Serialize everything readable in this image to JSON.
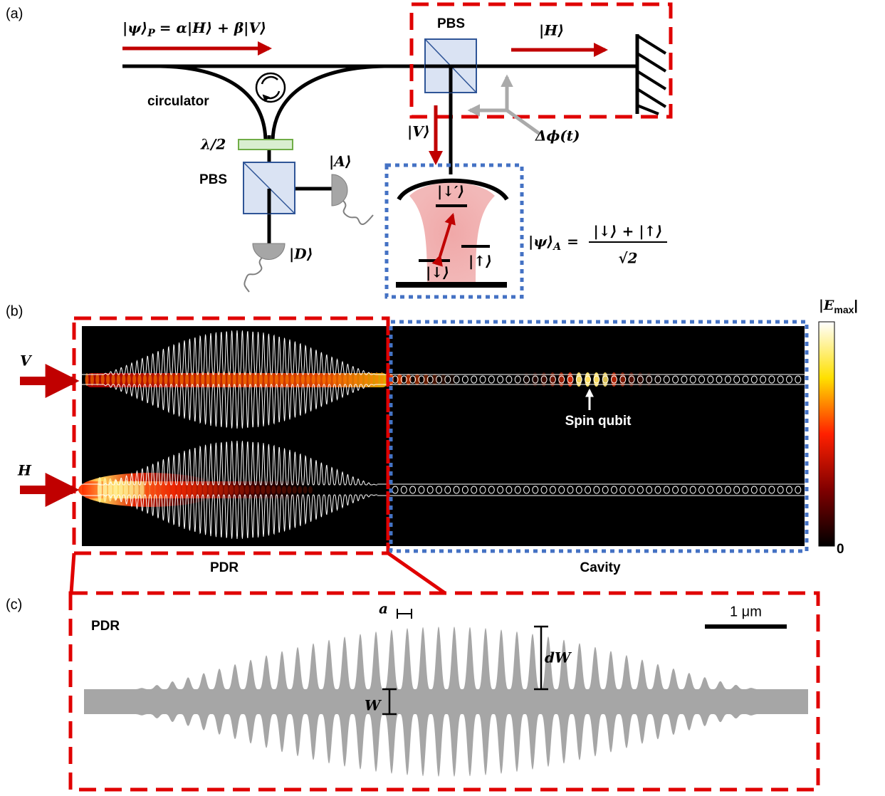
{
  "panel_a": {
    "label": "(a)",
    "input_state": {
      "lhs": "|ψ⟩",
      "sub": "P",
      "rhs": "= α|H⟩ + β|V⟩"
    },
    "pbs_top": "PBS",
    "h_state": "|H⟩",
    "circulator": "circulator",
    "half_wave": "λ/2",
    "pbs_bottom": "PBS",
    "detector_a": "|A⟩",
    "detector_d": "|D⟩",
    "v_state": "|V⟩",
    "phase": "Δϕ(t)",
    "level_excited": "|↓′⟩",
    "level_down": "|↓⟩",
    "level_up": "|↑⟩",
    "atom_state": {
      "lhs": "|ψ⟩",
      "sub": "A",
      "eq": "=",
      "numerator": "|↓⟩ + |↑⟩",
      "denominator": "√2"
    }
  },
  "panel_b": {
    "label": "(b)",
    "input_v": "V",
    "input_h": "H",
    "spin_qubit": "Spin qubit",
    "pdr": "PDR",
    "cavity": "Cavity",
    "colorbar_title": {
      "main": "|E",
      "sub": "max",
      "end": "|"
    },
    "colorbar_min": "0"
  },
  "panel_c": {
    "label": "(c)",
    "title": "PDR",
    "period": "a",
    "scale_bar": "1 μm",
    "modulation": "dW",
    "width": "W"
  }
}
